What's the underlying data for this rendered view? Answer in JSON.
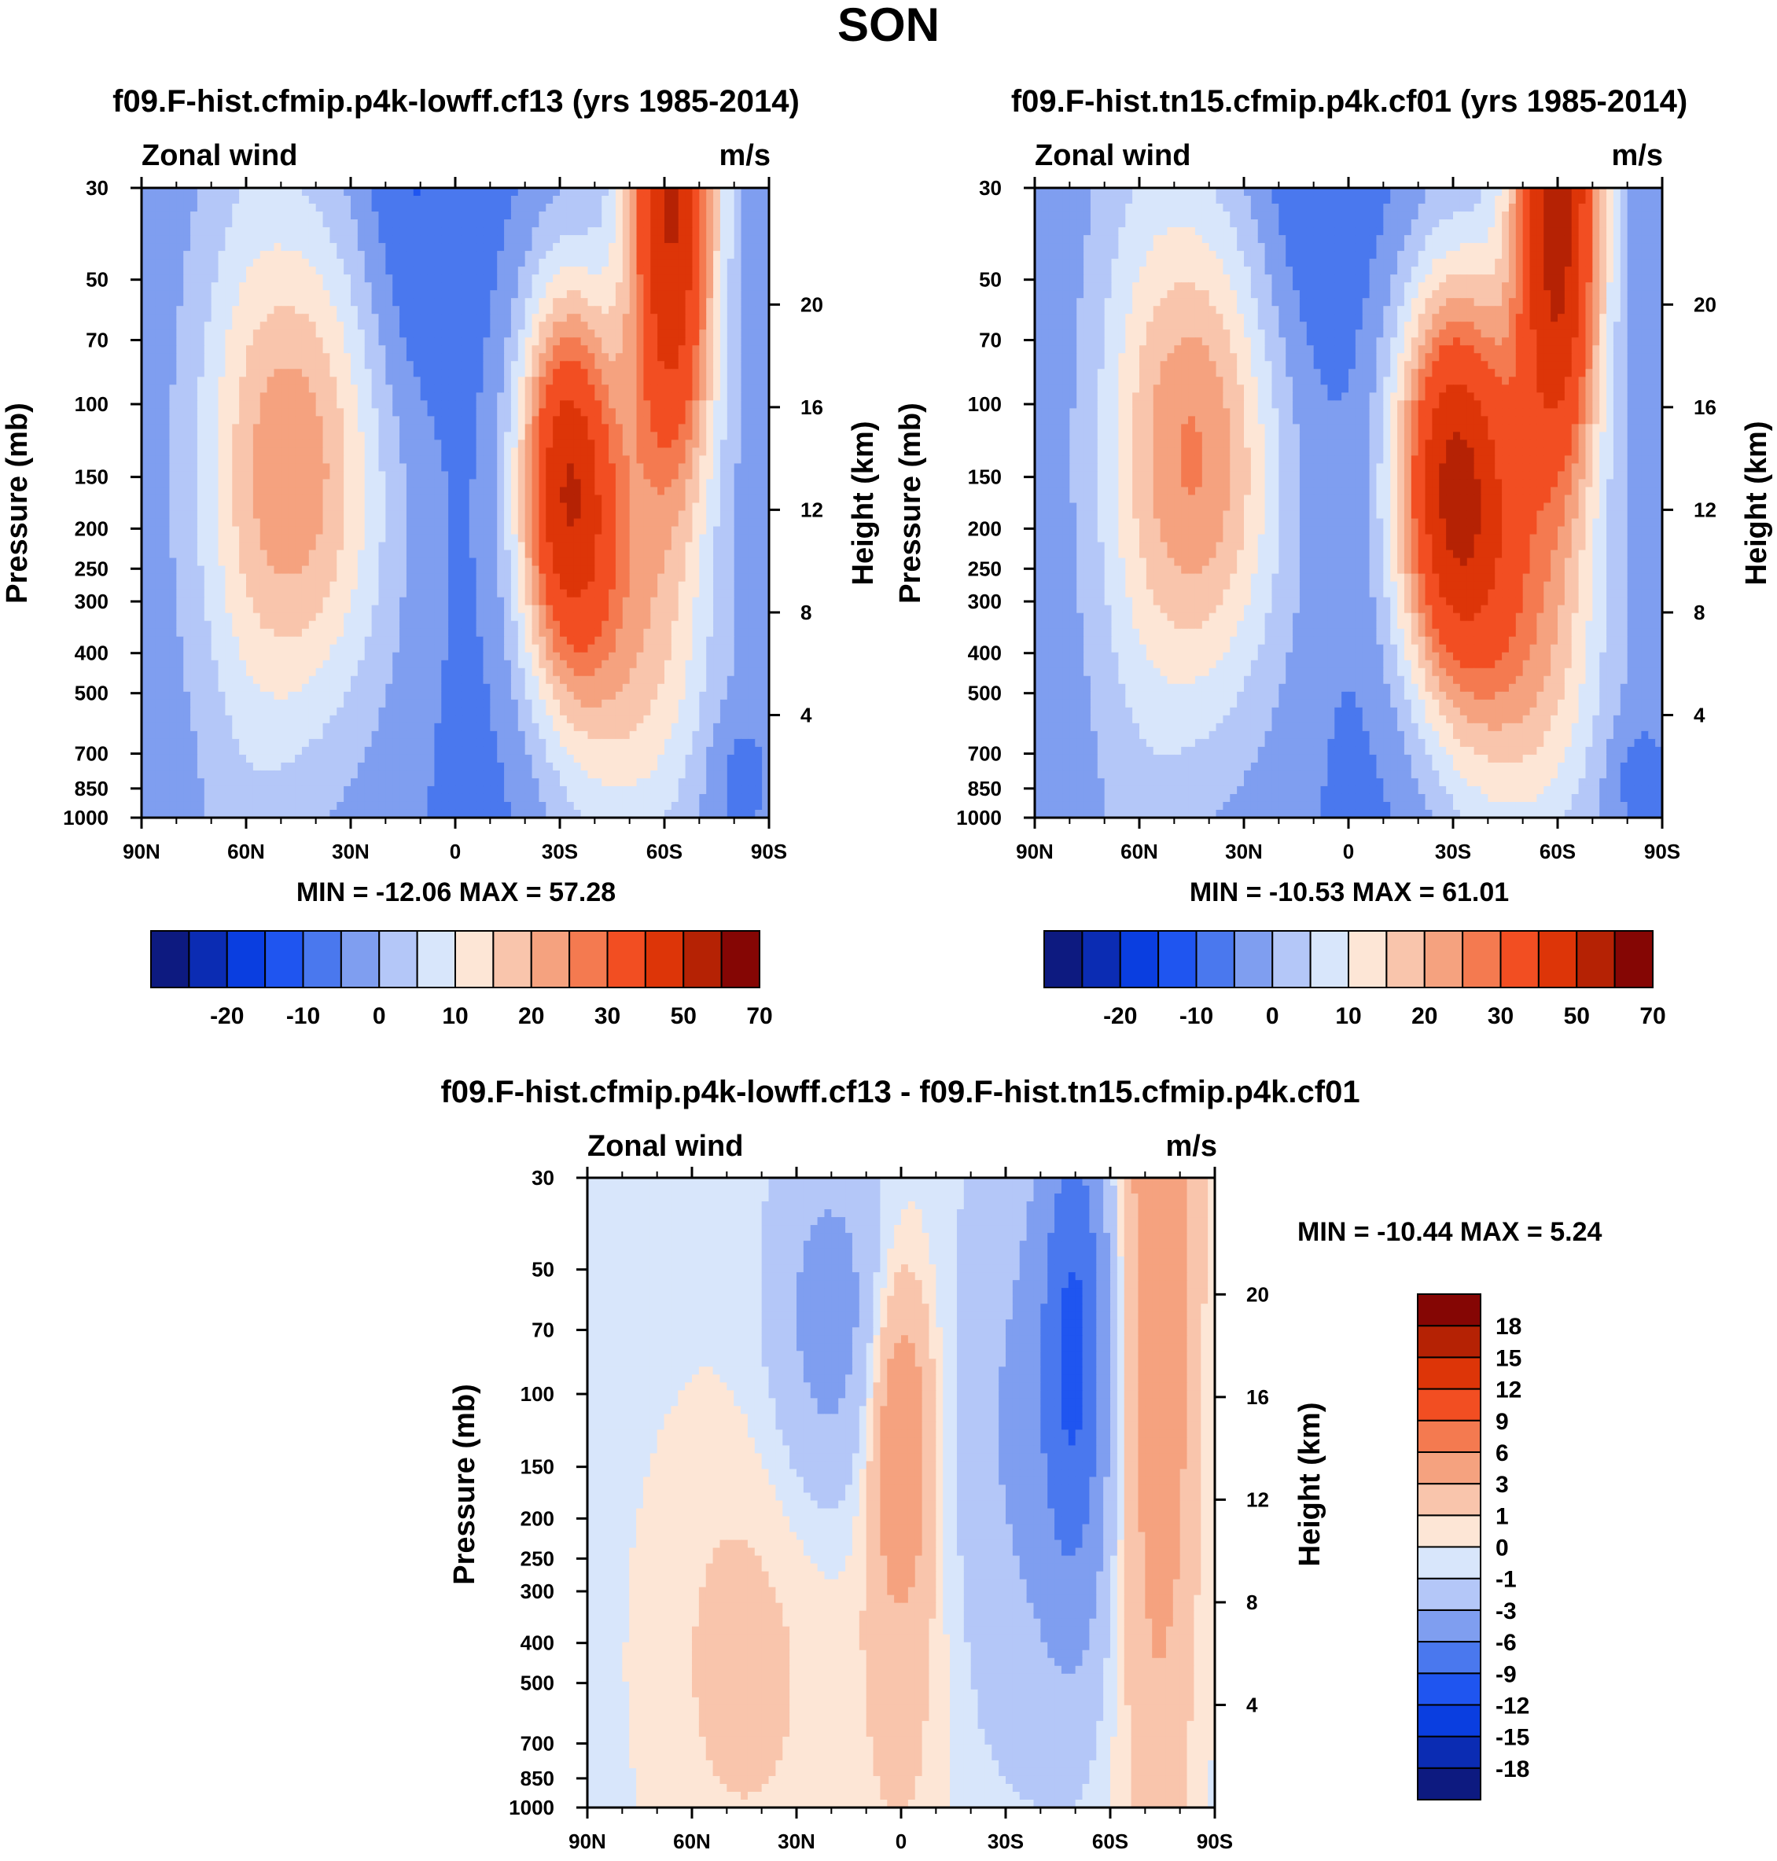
{
  "figure_title": "SON",
  "colors": {
    "panel_palette": [
      "#0d1a80",
      "#0b2cb3",
      "#0a3ee0",
      "#1f55f0",
      "#4a78ee",
      "#7f9ef0",
      "#b4c7f8",
      "#d8e6fb",
      "#fde6d6",
      "#f9c5ac",
      "#f5a27f",
      "#f47a50",
      "#f24e22",
      "#dd3508",
      "#b52204",
      "#850604"
    ],
    "diff_palette": [
      "#0d1a80",
      "#0b2cb3",
      "#0a3ee0",
      "#1f55f0",
      "#4a78ee",
      "#7f9ef0",
      "#b4c7f8",
      "#d8e6fb",
      "#fde6d6",
      "#f9c5ac",
      "#f5a27f",
      "#f47a50",
      "#f24e22",
      "#dd3508",
      "#b52204",
      "#850604"
    ]
  },
  "chart_data": [
    {
      "type": "heatmap",
      "title": "f09.F-hist.cfmip.p4k-lowff.cf13 (yrs 1985-2014)",
      "left_label": "Zonal wind",
      "right_label": "m/s",
      "ylabel": "Pressure (mb)",
      "ylabel_right": "Height (km)",
      "x_ticks": [
        "90N",
        "60N",
        "30N",
        "0",
        "30S",
        "60S",
        "90S"
      ],
      "x_values": [
        90,
        60,
        30,
        0,
        -30,
        -60,
        -90
      ],
      "y_ticks": [
        30,
        50,
        70,
        100,
        150,
        200,
        250,
        300,
        400,
        500,
        700,
        850,
        1000
      ],
      "y_right_ticks": [
        20,
        16,
        12,
        8,
        4
      ],
      "ylim": [
        1000,
        30
      ],
      "log_y": true,
      "min_max": "MIN = -12.06  MAX =  57.28",
      "min": -12.06,
      "max": 57.28,
      "colorbar": {
        "orientation": "horizontal",
        "levels": [
          -25,
          -20,
          -15,
          -10,
          -5,
          0,
          5,
          10,
          15,
          20,
          25,
          30,
          40,
          50,
          60,
          70
        ],
        "tick_labels": [
          "-20",
          "-10",
          "0",
          "10",
          "20",
          "30",
          "50",
          "70"
        ]
      }
    },
    {
      "type": "heatmap",
      "title": "f09.F-hist.tn15.cfmip.p4k.cf01 (yrs 1985-2014)",
      "left_label": "Zonal wind",
      "right_label": "m/s",
      "ylabel": "Pressure (mb)",
      "ylabel_right": "Height (km)",
      "x_ticks": [
        "90N",
        "60N",
        "30N",
        "0",
        "30S",
        "60S",
        "90S"
      ],
      "x_values": [
        90,
        60,
        30,
        0,
        -30,
        -60,
        -90
      ],
      "y_ticks": [
        30,
        50,
        70,
        100,
        150,
        200,
        250,
        300,
        400,
        500,
        700,
        850,
        1000
      ],
      "y_right_ticks": [
        20,
        16,
        12,
        8,
        4
      ],
      "ylim": [
        1000,
        30
      ],
      "log_y": true,
      "min_max": "MIN = -10.53  MAX =  61.01",
      "min": -10.53,
      "max": 61.01,
      "colorbar": {
        "orientation": "horizontal",
        "levels": [
          -25,
          -20,
          -15,
          -10,
          -5,
          0,
          5,
          10,
          15,
          20,
          25,
          30,
          40,
          50,
          60,
          70
        ],
        "tick_labels": [
          "-20",
          "-10",
          "0",
          "10",
          "20",
          "30",
          "50",
          "70"
        ]
      }
    },
    {
      "type": "heatmap",
      "title": "f09.F-hist.cfmip.p4k-lowff.cf13 - f09.F-hist.tn15.cfmip.p4k.cf01",
      "left_label": "Zonal wind",
      "right_label": "m/s",
      "ylabel": "Pressure (mb)",
      "ylabel_right": "Height (km)",
      "x_ticks": [
        "90N",
        "60N",
        "30N",
        "0",
        "30S",
        "60S",
        "90S"
      ],
      "x_values": [
        90,
        60,
        30,
        0,
        -30,
        -60,
        -90
      ],
      "y_ticks": [
        30,
        50,
        70,
        100,
        150,
        200,
        250,
        300,
        400,
        500,
        700,
        850,
        1000
      ],
      "y_right_ticks": [
        20,
        16,
        12,
        8,
        4
      ],
      "ylim": [
        1000,
        30
      ],
      "log_y": true,
      "min_max": "MIN = -10.44  MAX =   5.24",
      "min": -10.44,
      "max": 5.24,
      "colorbar": {
        "orientation": "vertical",
        "levels": [
          -18,
          -15,
          -12,
          -9,
          -6,
          -3,
          -1,
          0,
          1,
          3,
          6,
          9,
          12,
          15,
          18
        ],
        "tick_labels": [
          "-18",
          "-15",
          "-12",
          "-9",
          "-6",
          "-3",
          "-1",
          "0",
          "1",
          "3",
          "6",
          "9",
          "12",
          "15",
          "18"
        ]
      }
    }
  ]
}
